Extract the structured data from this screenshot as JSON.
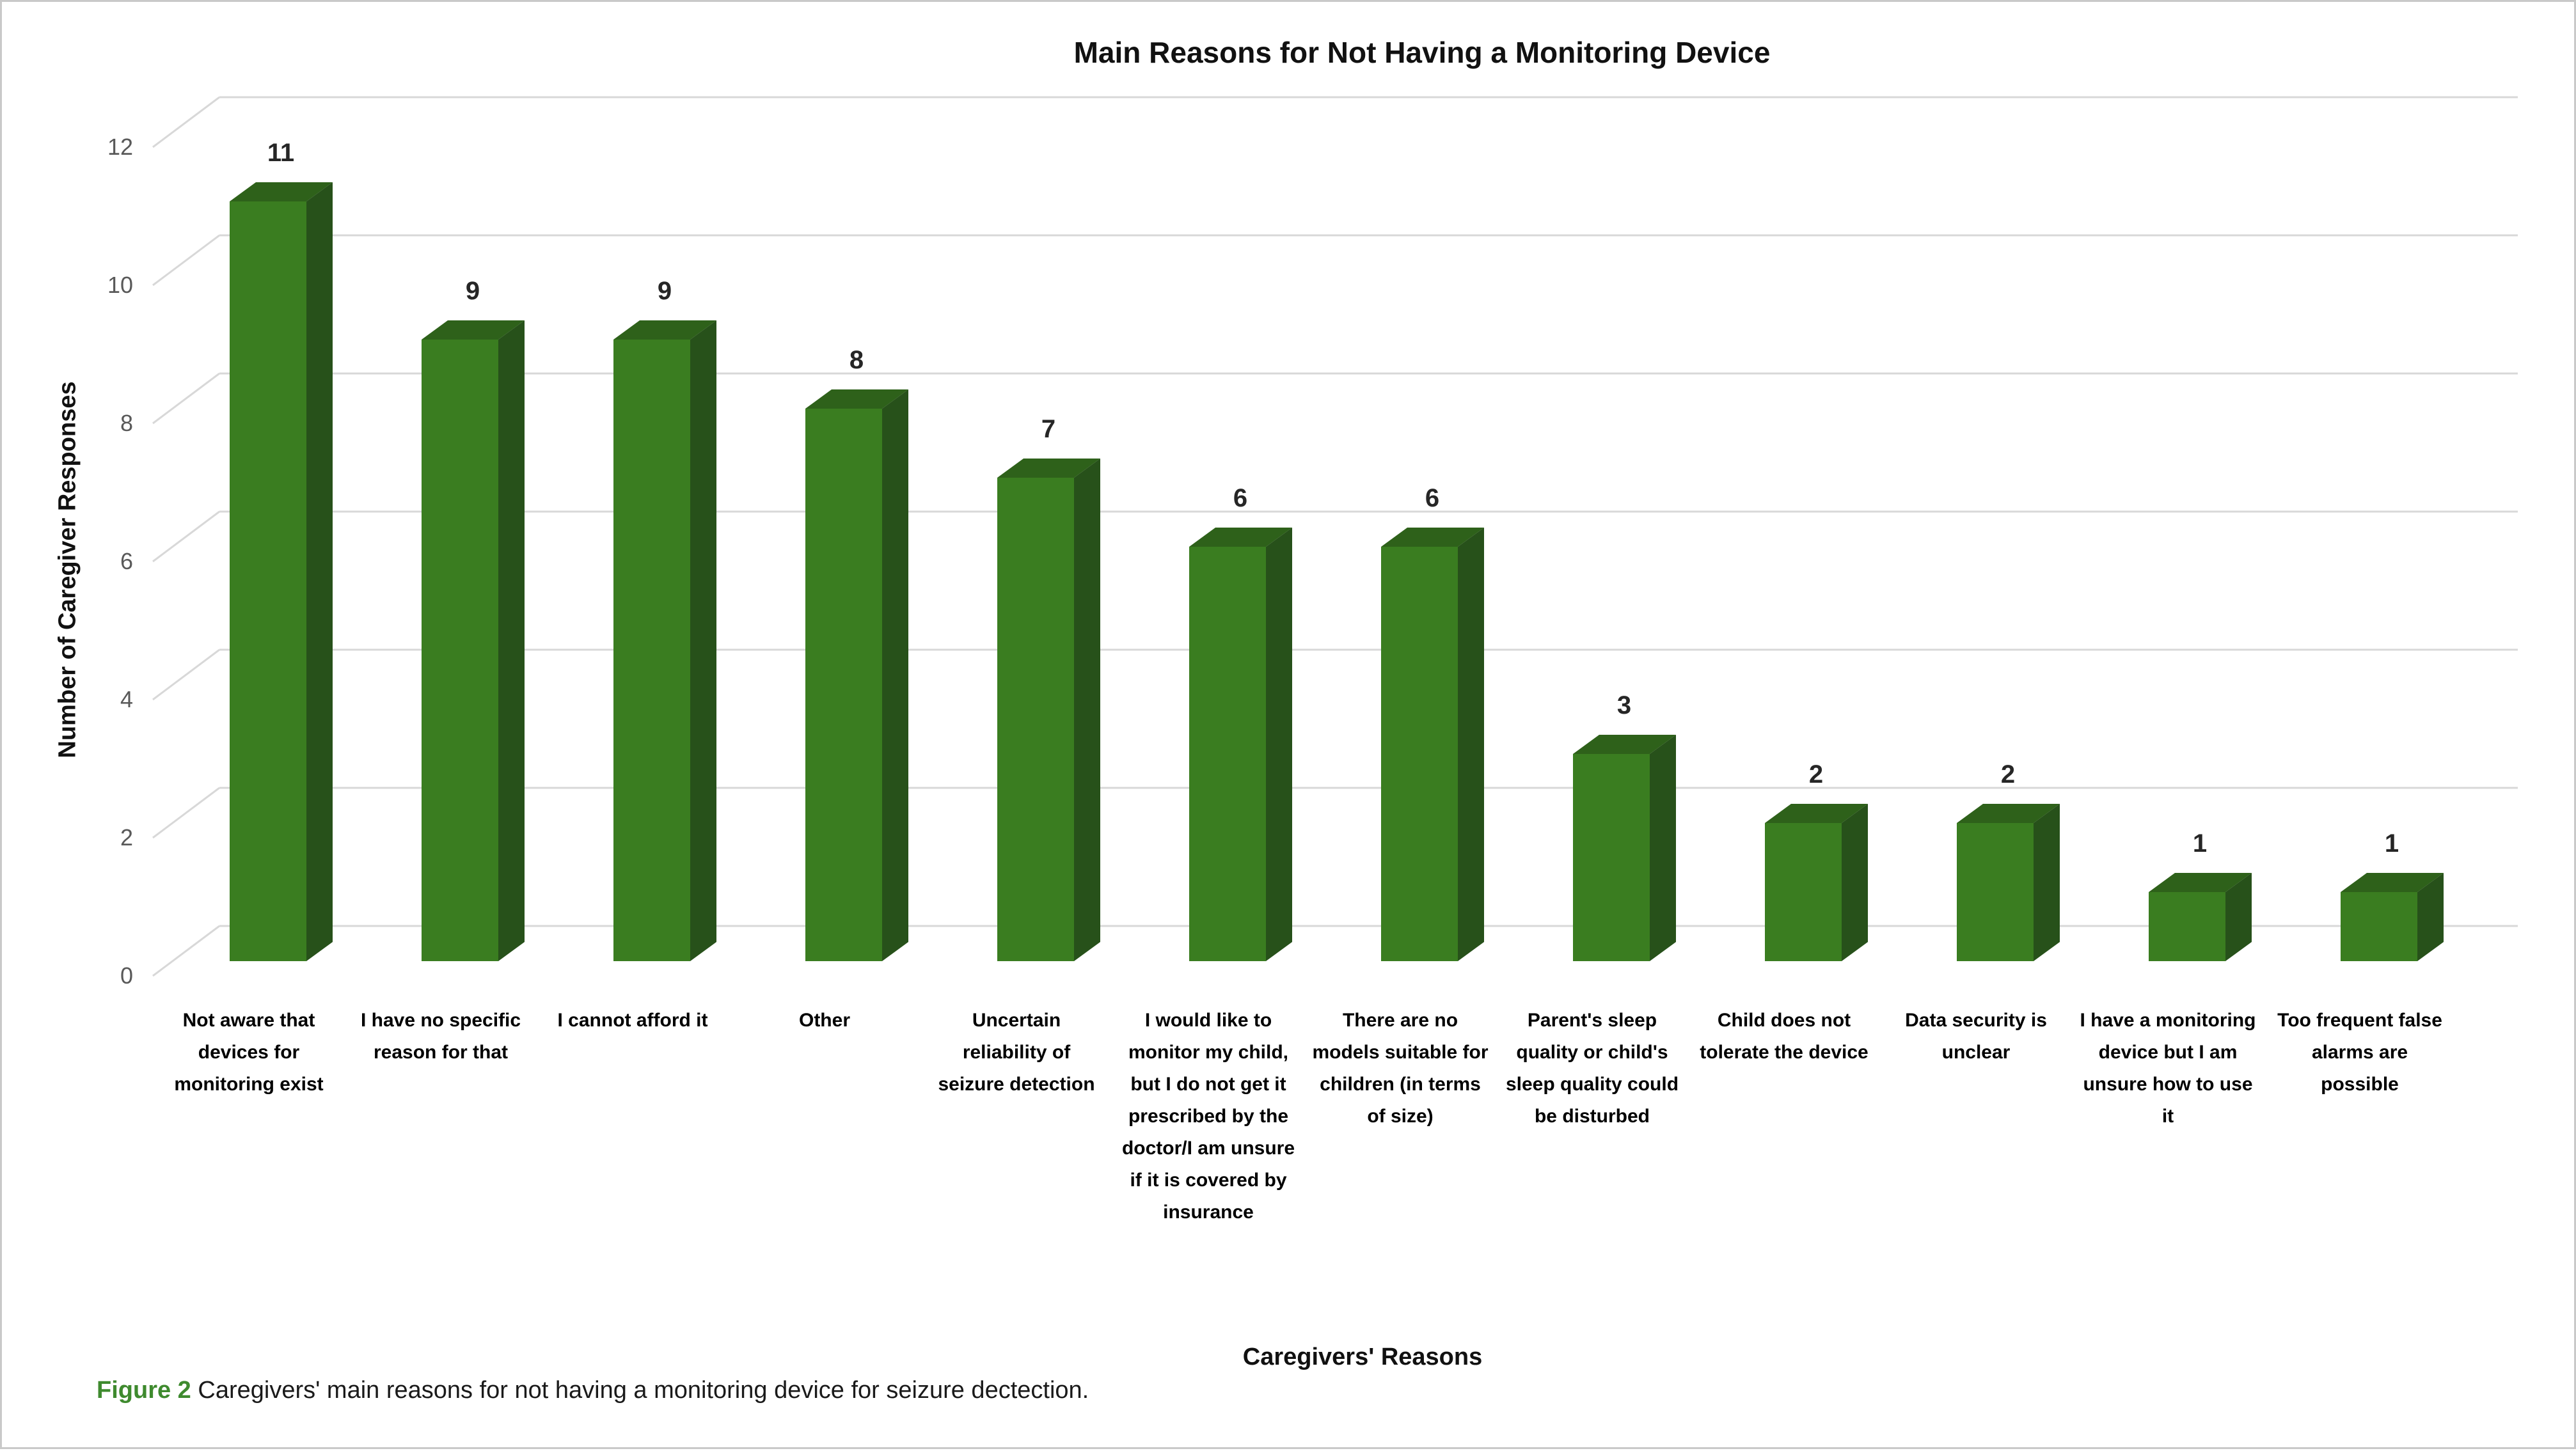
{
  "chart_data": {
    "type": "bar",
    "style": "3d-column",
    "title": "Main Reasons for Not Having a Monitoring Device",
    "xlabel": "Caregivers' Reasons",
    "ylabel": "Number of Caregiver Responses",
    "ylim": [
      0,
      12
    ],
    "ytick_step": 2,
    "yticks": [
      0,
      2,
      4,
      6,
      8,
      10,
      12
    ],
    "grid": true,
    "legend": "none",
    "categories": [
      "Not aware that devices for monitoring exist",
      "I have no specific reason for that",
      "I cannot afford it",
      "Other",
      "Uncertain reliability of seizure detection",
      "I would like to monitor my child, but I do not get it prescribed by the doctor/I am unsure if it is covered by insurance",
      "There are no models suitable for children (in terms of size)",
      "Parent's sleep quality or child's sleep quality could be disturbed",
      "Child does not tolerate the device",
      "Data security is unclear",
      "I have a monitoring device but I am unsure how to use it",
      "Too frequent false alarms are possible"
    ],
    "values": [
      11,
      9,
      9,
      8,
      7,
      6,
      6,
      3,
      2,
      2,
      1,
      1
    ],
    "colors": {
      "bar_front": "#3A7D20",
      "bar_top": "#2E611A",
      "bar_side": "#27511A",
      "gridline": "#D8D8D8",
      "tick_label": "#595959",
      "data_label": "#262626"
    }
  },
  "caption": {
    "label": "Figure 2",
    "label_color": "#3E8A2E",
    "text": "Caregivers' main reasons for not having a monitoring device for seizure dectection."
  }
}
